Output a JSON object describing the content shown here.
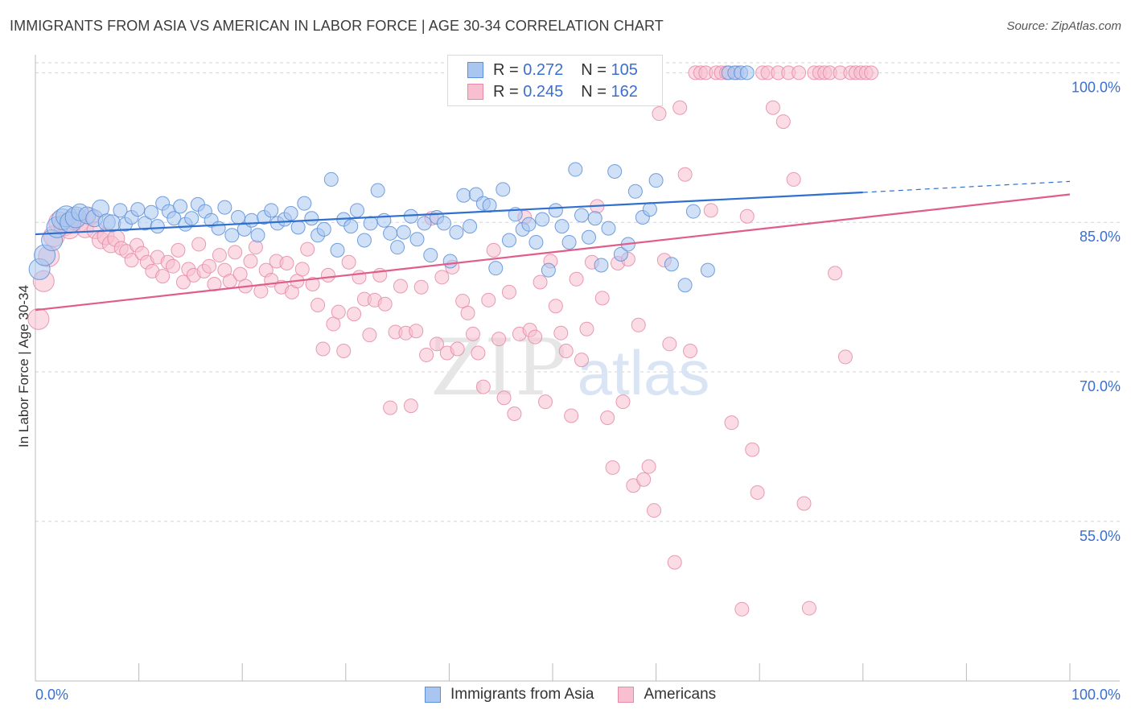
{
  "title": "IMMIGRANTS FROM ASIA VS AMERICAN IN LABOR FORCE | AGE 30-34 CORRELATION CHART",
  "source": "Source: ZipAtlas.com",
  "watermark": {
    "zip": "ZIP",
    "atlas": "atlas"
  },
  "legend": {
    "series1": {
      "r_label": "R =",
      "r_value": "0.272",
      "n_label": "N =",
      "n_value": "105"
    },
    "series2": {
      "r_label": "R =",
      "r_value": "0.245",
      "n_label": "N =",
      "n_value": "162"
    }
  },
  "colors": {
    "blue_fill": "#a9c6f0",
    "blue_stroke": "#5a8fd8",
    "blue_line": "#2f6fce",
    "pink_fill": "#f7bfd0",
    "pink_stroke": "#e58aa8",
    "pink_line": "#e05c8a",
    "grid": "#d0d5dd",
    "tick_label": "#3a6fd0"
  },
  "chart_data": {
    "type": "scatter",
    "xlabel": "",
    "ylabel": "In Labor Force | Age 30-34",
    "xlim": [
      0,
      100
    ],
    "ylim": [
      39,
      101
    ],
    "x_tick_labels": [
      "0.0%",
      "100.0%"
    ],
    "y_ticks": [
      {
        "value": 100,
        "label": "100.0%"
      },
      {
        "value": 85,
        "label": "85.0%"
      },
      {
        "value": 70,
        "label": "70.0%"
      },
      {
        "value": 55,
        "label": "55.0%"
      }
    ],
    "grid": true,
    "legend_position": "bottom",
    "series": [
      {
        "name": "Immigrants from Asia",
        "color": "#5a8fd8",
        "trend": {
          "x": [
            0,
            80
          ],
          "y": [
            83.8,
            88.0
          ],
          "dashed_to": [
            100,
            89.1
          ]
        },
        "points": [
          [
            0.4,
            80.3
          ],
          [
            0.9,
            81.7
          ],
          [
            1.6,
            83.2
          ],
          [
            2.1,
            84.5
          ],
          [
            2.6,
            85.3
          ],
          [
            3.0,
            85.6
          ],
          [
            3.4,
            85.0
          ],
          [
            3.9,
            85.5
          ],
          [
            4.3,
            86.0
          ],
          [
            5.0,
            85.7
          ],
          [
            5.7,
            85.4
          ],
          [
            6.3,
            86.4
          ],
          [
            6.9,
            85.0
          ],
          [
            7.4,
            84.9
          ],
          [
            8.2,
            86.2
          ],
          [
            8.7,
            84.8
          ],
          [
            9.3,
            85.5
          ],
          [
            9.9,
            86.3
          ],
          [
            10.6,
            84.9
          ],
          [
            11.2,
            86.0
          ],
          [
            11.8,
            84.6
          ],
          [
            12.3,
            86.9
          ],
          [
            12.9,
            86.1
          ],
          [
            13.4,
            85.4
          ],
          [
            14.0,
            86.6
          ],
          [
            14.5,
            84.8
          ],
          [
            15.1,
            85.4
          ],
          [
            15.7,
            86.8
          ],
          [
            16.4,
            86.1
          ],
          [
            17.0,
            85.2
          ],
          [
            17.7,
            84.4
          ],
          [
            18.3,
            86.5
          ],
          [
            19.0,
            83.7
          ],
          [
            19.6,
            85.5
          ],
          [
            20.2,
            84.3
          ],
          [
            20.9,
            85.2
          ],
          [
            21.5,
            83.7
          ],
          [
            22.1,
            85.5
          ],
          [
            22.8,
            86.2
          ],
          [
            23.4,
            84.9
          ],
          [
            24.1,
            85.3
          ],
          [
            24.7,
            85.9
          ],
          [
            25.4,
            84.5
          ],
          [
            26.0,
            86.9
          ],
          [
            26.7,
            85.4
          ],
          [
            27.3,
            83.7
          ],
          [
            27.9,
            84.3
          ],
          [
            28.6,
            89.3
          ],
          [
            29.2,
            82.2
          ],
          [
            29.8,
            85.3
          ],
          [
            30.5,
            84.6
          ],
          [
            31.1,
            86.2
          ],
          [
            31.8,
            83.2
          ],
          [
            32.4,
            84.9
          ],
          [
            33.1,
            88.2
          ],
          [
            33.7,
            85.2
          ],
          [
            34.3,
            83.9
          ],
          [
            35.0,
            82.5
          ],
          [
            35.6,
            84.0
          ],
          [
            36.3,
            85.6
          ],
          [
            36.9,
            83.3
          ],
          [
            37.6,
            84.9
          ],
          [
            38.2,
            81.7
          ],
          [
            38.8,
            85.5
          ],
          [
            39.5,
            84.9
          ],
          [
            40.1,
            81.1
          ],
          [
            40.7,
            84.0
          ],
          [
            41.4,
            87.7
          ],
          [
            42.0,
            84.6
          ],
          [
            42.6,
            87.8
          ],
          [
            43.3,
            86.9
          ],
          [
            43.9,
            86.7
          ],
          [
            44.5,
            80.4
          ],
          [
            45.2,
            88.3
          ],
          [
            45.8,
            83.2
          ],
          [
            46.4,
            85.8
          ],
          [
            47.1,
            84.3
          ],
          [
            47.7,
            84.8
          ],
          [
            48.4,
            83.0
          ],
          [
            49.0,
            85.3
          ],
          [
            49.6,
            80.2
          ],
          [
            50.3,
            86.2
          ],
          [
            50.9,
            84.6
          ],
          [
            51.6,
            83.0
          ],
          [
            52.2,
            90.3
          ],
          [
            52.8,
            85.7
          ],
          [
            53.5,
            83.5
          ],
          [
            54.1,
            85.4
          ],
          [
            54.7,
            80.7
          ],
          [
            55.4,
            84.4
          ],
          [
            56.0,
            90.1
          ],
          [
            56.6,
            81.8
          ],
          [
            57.3,
            82.8
          ],
          [
            58.0,
            88.1
          ],
          [
            58.7,
            85.5
          ],
          [
            59.4,
            86.3
          ],
          [
            60.0,
            89.2
          ],
          [
            61.5,
            80.8
          ],
          [
            62.8,
            78.7
          ],
          [
            63.6,
            86.1
          ],
          [
            65.0,
            80.2
          ],
          [
            67.0,
            100.0
          ],
          [
            67.6,
            100.0
          ],
          [
            68.2,
            100.0
          ],
          [
            68.8,
            100.0
          ]
        ]
      },
      {
        "name": "Americans",
        "color": "#e58aa8",
        "trend": {
          "x": [
            0,
            100
          ],
          "y": [
            76.2,
            87.8
          ]
        },
        "points": [
          [
            0.3,
            75.3
          ],
          [
            0.8,
            79.1
          ],
          [
            1.3,
            81.6
          ],
          [
            1.8,
            83.6
          ],
          [
            2.3,
            85.0
          ],
          [
            2.8,
            84.7
          ],
          [
            3.3,
            84.4
          ],
          [
            3.8,
            85.3
          ],
          [
            4.3,
            84.9
          ],
          [
            4.8,
            84.3
          ],
          [
            5.3,
            85.6
          ],
          [
            5.8,
            84.2
          ],
          [
            6.3,
            83.2
          ],
          [
            6.8,
            83.6
          ],
          [
            7.3,
            82.8
          ],
          [
            7.8,
            83.4
          ],
          [
            8.3,
            82.4
          ],
          [
            8.8,
            82.1
          ],
          [
            9.3,
            81.2
          ],
          [
            9.8,
            82.7
          ],
          [
            10.3,
            81.9
          ],
          [
            10.8,
            81.0
          ],
          [
            11.3,
            80.1
          ],
          [
            11.8,
            81.5
          ],
          [
            12.3,
            79.6
          ],
          [
            12.8,
            81.0
          ],
          [
            13.3,
            80.6
          ],
          [
            13.8,
            82.2
          ],
          [
            14.3,
            79.0
          ],
          [
            14.8,
            80.3
          ],
          [
            15.3,
            79.7
          ],
          [
            15.8,
            82.8
          ],
          [
            16.3,
            80.1
          ],
          [
            16.8,
            80.6
          ],
          [
            17.3,
            78.8
          ],
          [
            17.8,
            81.7
          ],
          [
            18.3,
            80.2
          ],
          [
            18.8,
            79.1
          ],
          [
            19.3,
            82.0
          ],
          [
            19.8,
            79.8
          ],
          [
            20.3,
            78.6
          ],
          [
            20.8,
            81.1
          ],
          [
            21.3,
            82.5
          ],
          [
            21.8,
            78.1
          ],
          [
            22.3,
            80.2
          ],
          [
            22.8,
            79.2
          ],
          [
            23.3,
            81.1
          ],
          [
            23.8,
            78.5
          ],
          [
            24.3,
            80.9
          ],
          [
            24.8,
            78.0
          ],
          [
            25.3,
            79.1
          ],
          [
            25.8,
            80.3
          ],
          [
            26.3,
            82.3
          ],
          [
            26.8,
            78.8
          ],
          [
            27.3,
            76.7
          ],
          [
            27.8,
            72.3
          ],
          [
            28.3,
            79.7
          ],
          [
            28.8,
            74.8
          ],
          [
            29.3,
            76.0
          ],
          [
            29.8,
            72.1
          ],
          [
            30.3,
            81.0
          ],
          [
            30.8,
            75.8
          ],
          [
            31.3,
            79.5
          ],
          [
            31.8,
            77.3
          ],
          [
            32.3,
            73.7
          ],
          [
            32.8,
            77.2
          ],
          [
            33.3,
            79.7
          ],
          [
            33.8,
            76.8
          ],
          [
            34.3,
            66.4
          ],
          [
            34.8,
            74.0
          ],
          [
            35.3,
            78.6
          ],
          [
            35.8,
            73.9
          ],
          [
            36.3,
            66.6
          ],
          [
            36.8,
            74.1
          ],
          [
            37.3,
            78.5
          ],
          [
            37.8,
            71.7
          ],
          [
            38.3,
            85.4
          ],
          [
            38.8,
            72.8
          ],
          [
            39.3,
            79.5
          ],
          [
            39.8,
            71.9
          ],
          [
            40.3,
            80.5
          ],
          [
            40.8,
            72.3
          ],
          [
            41.3,
            77.1
          ],
          [
            41.8,
            75.9
          ],
          [
            42.3,
            73.8
          ],
          [
            42.8,
            71.9
          ],
          [
            43.3,
            68.5
          ],
          [
            43.8,
            77.2
          ],
          [
            44.3,
            82.2
          ],
          [
            44.8,
            73.3
          ],
          [
            45.3,
            67.4
          ],
          [
            45.8,
            78.0
          ],
          [
            46.3,
            65.8
          ],
          [
            46.8,
            73.8
          ],
          [
            47.3,
            85.5
          ],
          [
            47.8,
            74.2
          ],
          [
            48.3,
            73.5
          ],
          [
            48.8,
            79.0
          ],
          [
            49.3,
            67.0
          ],
          [
            49.8,
            81.1
          ],
          [
            50.3,
            76.6
          ],
          [
            50.8,
            73.9
          ],
          [
            51.3,
            72.1
          ],
          [
            51.8,
            65.6
          ],
          [
            52.3,
            79.3
          ],
          [
            52.8,
            71.2
          ],
          [
            53.3,
            74.3
          ],
          [
            53.8,
            81.0
          ],
          [
            54.3,
            86.6
          ],
          [
            54.8,
            77.4
          ],
          [
            55.3,
            65.4
          ],
          [
            55.8,
            60.4
          ],
          [
            56.3,
            80.9
          ],
          [
            56.8,
            67.0
          ],
          [
            57.3,
            81.3
          ],
          [
            57.8,
            58.6
          ],
          [
            58.3,
            74.7
          ],
          [
            58.8,
            59.2
          ],
          [
            59.3,
            60.5
          ],
          [
            59.8,
            56.1
          ],
          [
            60.3,
            95.9
          ],
          [
            60.8,
            81.2
          ],
          [
            61.3,
            72.8
          ],
          [
            61.8,
            50.9
          ],
          [
            62.3,
            96.5
          ],
          [
            62.8,
            89.8
          ],
          [
            63.3,
            72.1
          ],
          [
            63.8,
            100.0
          ],
          [
            64.3,
            100.0
          ],
          [
            64.8,
            100.0
          ],
          [
            65.3,
            86.2
          ],
          [
            65.8,
            100.0
          ],
          [
            66.3,
            100.0
          ],
          [
            66.8,
            100.0
          ],
          [
            67.3,
            64.9
          ],
          [
            67.8,
            100.0
          ],
          [
            68.3,
            46.2
          ],
          [
            68.8,
            85.6
          ],
          [
            69.3,
            62.2
          ],
          [
            69.8,
            57.9
          ],
          [
            70.3,
            100.0
          ],
          [
            70.8,
            100.0
          ],
          [
            71.3,
            96.5
          ],
          [
            71.8,
            100.0
          ],
          [
            72.3,
            95.1
          ],
          [
            72.8,
            100.0
          ],
          [
            73.3,
            89.3
          ],
          [
            73.8,
            100.0
          ],
          [
            74.3,
            56.8
          ],
          [
            74.8,
            46.3
          ],
          [
            75.3,
            100.0
          ],
          [
            75.8,
            100.0
          ],
          [
            76.3,
            100.0
          ],
          [
            76.8,
            100.0
          ],
          [
            77.3,
            79.9
          ],
          [
            77.8,
            100.0
          ],
          [
            78.3,
            71.5
          ],
          [
            78.8,
            100.0
          ],
          [
            79.3,
            100.0
          ],
          [
            79.8,
            100.0
          ],
          [
            80.3,
            100.0
          ],
          [
            80.8,
            100.0
          ]
        ]
      }
    ]
  }
}
